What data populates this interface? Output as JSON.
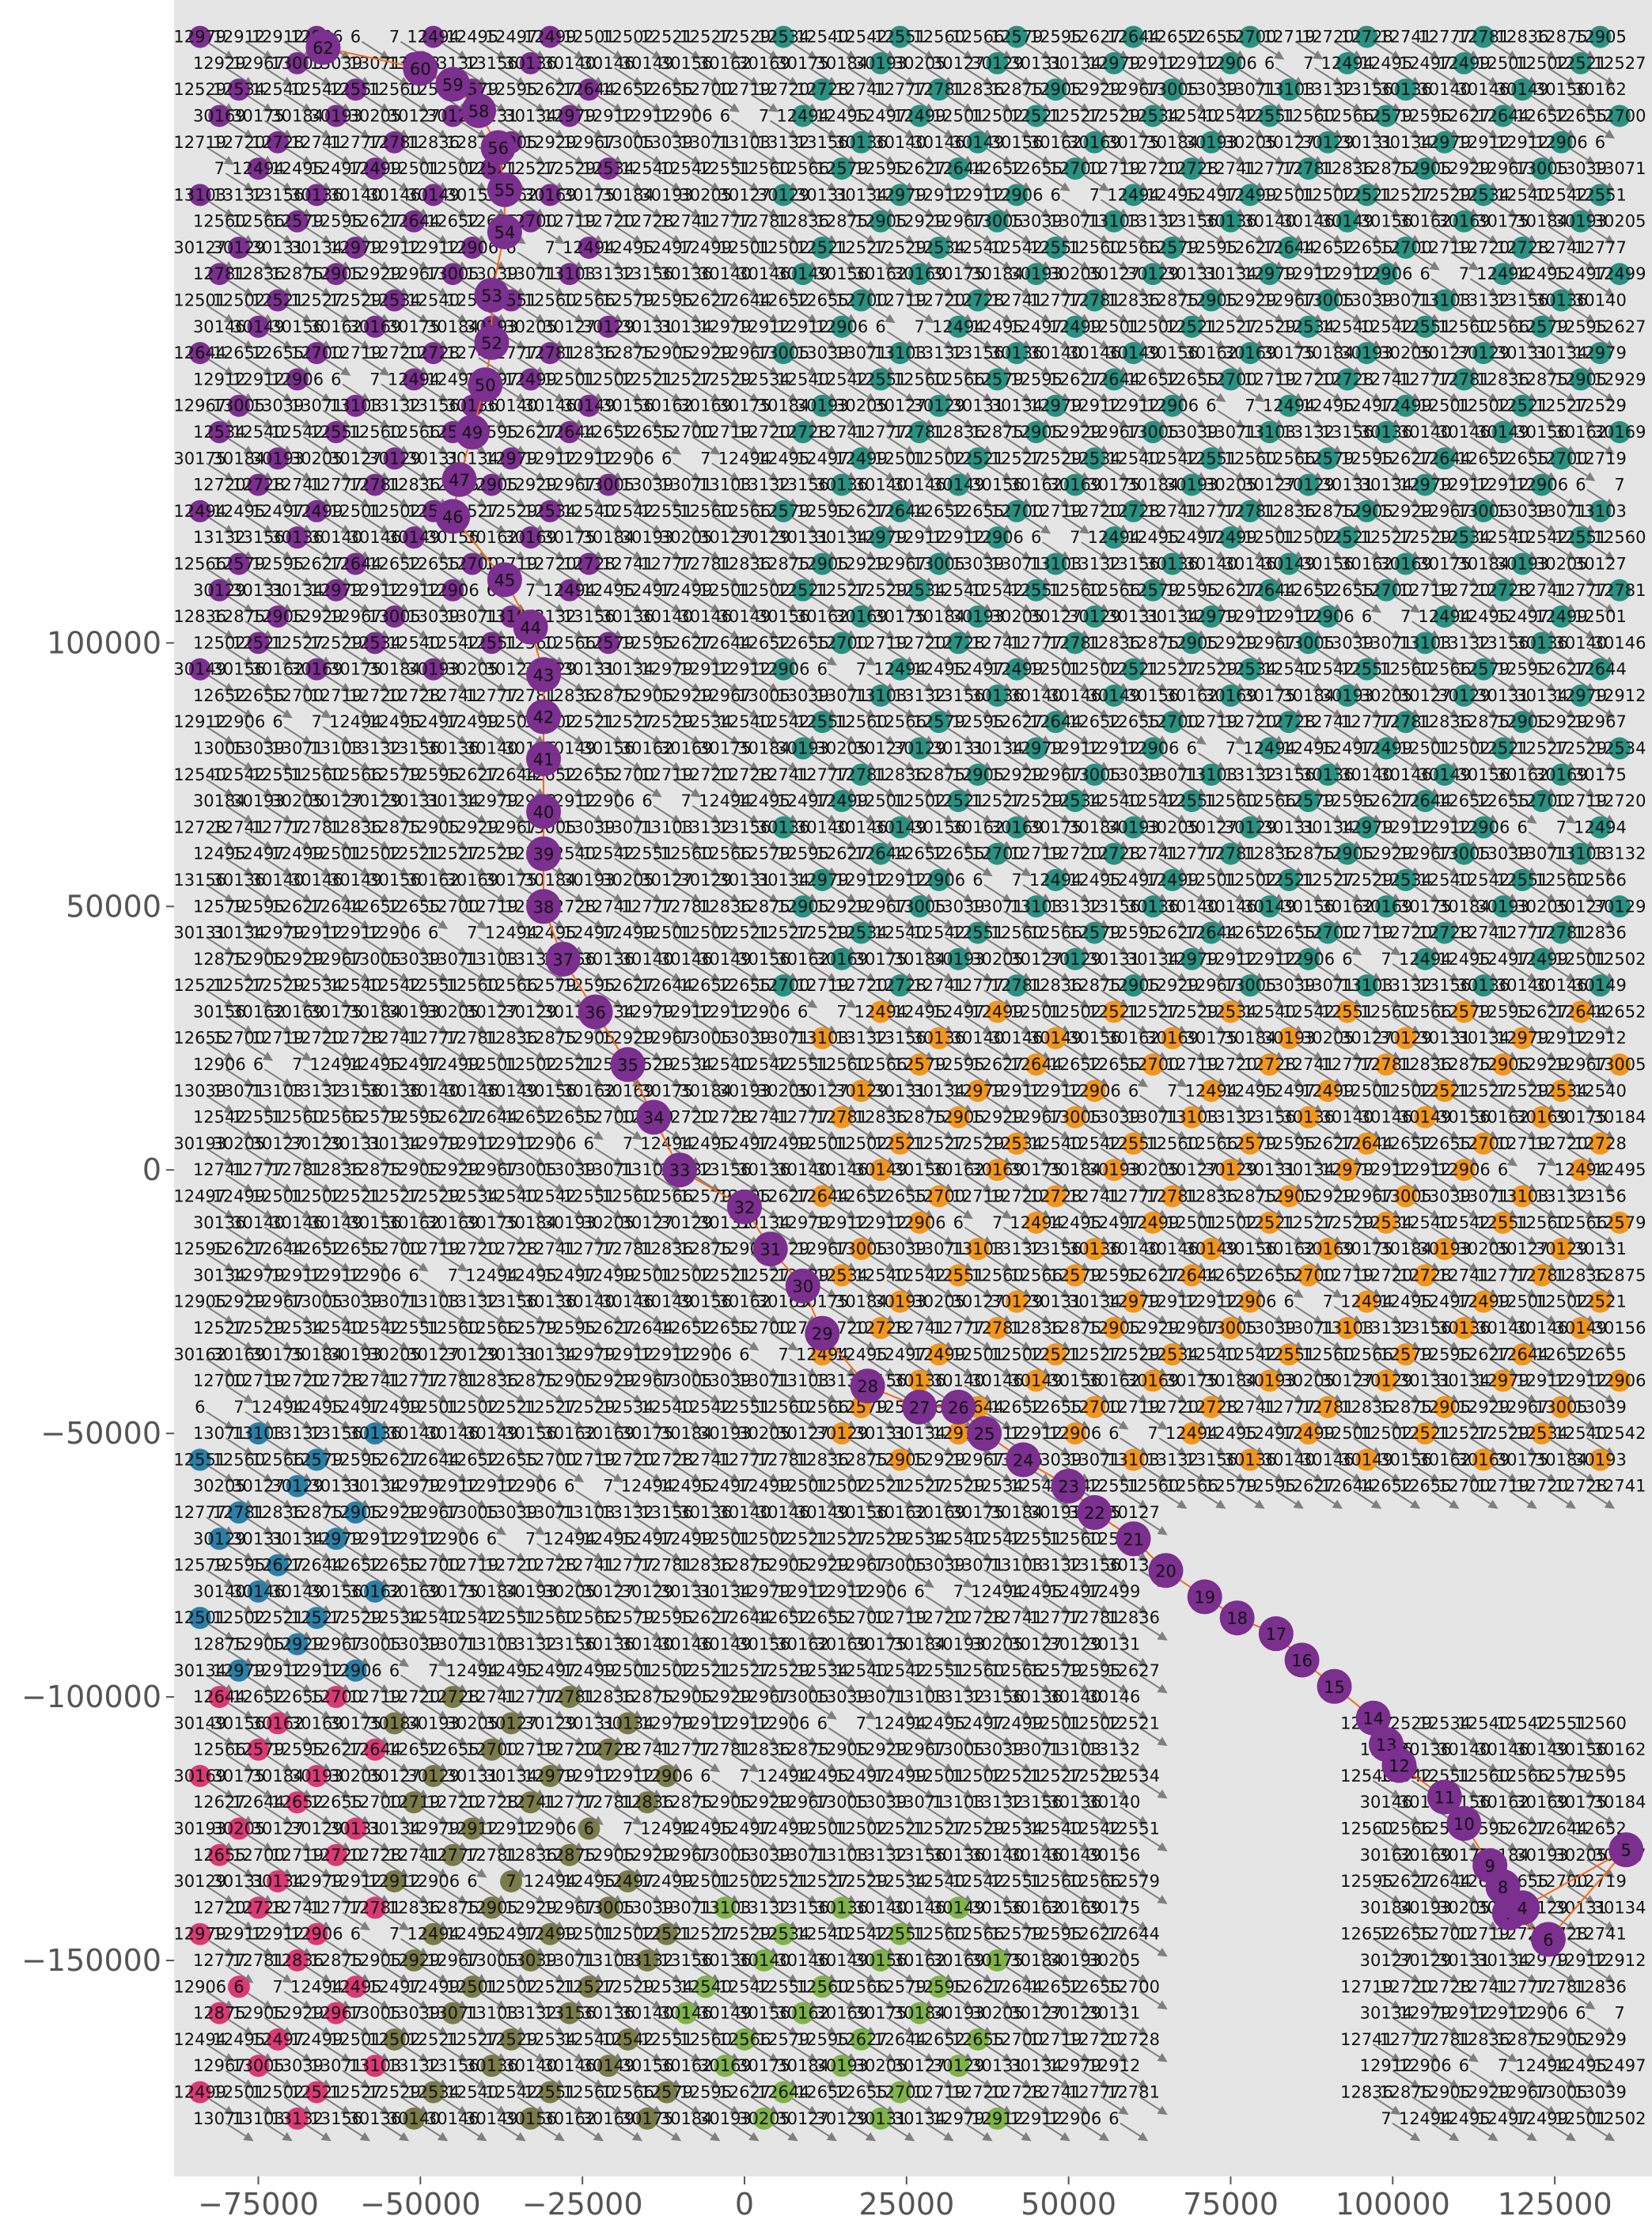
{
  "chart_data": {
    "type": "scatter",
    "subtype": "network-graph",
    "title": "",
    "xlabel": "",
    "ylabel": "",
    "xlim": [
      -88000,
      140000
    ],
    "ylim": [
      -191000,
      222000
    ],
    "grid": false,
    "legend": "none",
    "background": "#e5e5e5",
    "x_ticks": [
      {
        "value": -75000,
        "label": "−75000"
      },
      {
        "value": -50000,
        "label": "−50000"
      },
      {
        "value": -25000,
        "label": "−25000"
      },
      {
        "value": 0,
        "label": "0"
      },
      {
        "value": 25000,
        "label": "25000"
      },
      {
        "value": 50000,
        "label": "50000"
      },
      {
        "value": 75000,
        "label": "75000"
      },
      {
        "value": 100000,
        "label": "100000"
      },
      {
        "value": 125000,
        "label": "125000"
      }
    ],
    "y_ticks": [
      {
        "value": 100000,
        "label": "100000"
      },
      {
        "value": 50000,
        "label": "50000"
      },
      {
        "value": 0,
        "label": "0"
      },
      {
        "value": -50000,
        "label": "−50000"
      },
      {
        "value": -100000,
        "label": "−100000"
      },
      {
        "value": -150000,
        "label": "−150000"
      }
    ],
    "grid_nodes": {
      "x_start": -84000,
      "x_step": 6000,
      "columns": 37,
      "y_start": 215000,
      "y_step": -5000,
      "rows": 80
    },
    "region_colors": {
      "purple": "#7b2f8e",
      "teal": "#2a9081",
      "orange": "#f0961e",
      "blue": "#2b7fa6",
      "olive": "#7a7a4a",
      "pink": "#d93a74",
      "green": "#7fb24a",
      "gray_lattice": "#c8c8c8"
    },
    "path_color": "#f06a1e",
    "node_label_samples": [
      "12979",
      "12912",
      "12912",
      "12906",
      "6",
      "7",
      "12494",
      "12495",
      "12497",
      "12499",
      "12501",
      "12502",
      "12521",
      "12527",
      "12529",
      "12534",
      "12540",
      "12542",
      "12551",
      "12560",
      "12566",
      "12579",
      "12595",
      "12627",
      "12644",
      "12652",
      "12655",
      "12700",
      "12719",
      "12720",
      "12728",
      "12741",
      "12777",
      "12781",
      "12836",
      "12875",
      "12905",
      "12929",
      "12967",
      "13005",
      "13039",
      "13071",
      "13103",
      "13132",
      "13156",
      "30136",
      "30140",
      "30146",
      "30149",
      "30156",
      "30162",
      "30169",
      "30175",
      "30184",
      "30193",
      "30205",
      "30127",
      "30129",
      "30131",
      "30134"
    ],
    "path_nodes": [
      {
        "x": -65000,
        "y": 213000,
        "label": "62"
      },
      {
        "x": -50000,
        "y": 209000,
        "label": "60"
      },
      {
        "x": -45000,
        "y": 206000,
        "label": "59"
      },
      {
        "x": -41000,
        "y": 201000,
        "label": "58"
      },
      {
        "x": -38000,
        "y": 194000,
        "label": "56"
      },
      {
        "x": -37000,
        "y": 186000,
        "label": "55"
      },
      {
        "x": -37000,
        "y": 178000,
        "label": "54"
      },
      {
        "x": -39000,
        "y": 166000,
        "label": "53"
      },
      {
        "x": -39000,
        "y": 157000,
        "label": "52"
      },
      {
        "x": -40000,
        "y": 149000,
        "label": "50"
      },
      {
        "x": -42000,
        "y": 140000,
        "label": "49"
      },
      {
        "x": -44000,
        "y": 131000,
        "label": "47"
      },
      {
        "x": -45000,
        "y": 124000,
        "label": "46"
      },
      {
        "x": -37000,
        "y": 112000,
        "label": "45"
      },
      {
        "x": -33000,
        "y": 103000,
        "label": "44"
      },
      {
        "x": -31000,
        "y": 94000,
        "label": "43"
      },
      {
        "x": -31000,
        "y": 86000,
        "label": "42"
      },
      {
        "x": -31000,
        "y": 78000,
        "label": "41"
      },
      {
        "x": -31000,
        "y": 68000,
        "label": "40"
      },
      {
        "x": -31000,
        "y": 60000,
        "label": "39"
      },
      {
        "x": -31000,
        "y": 50000,
        "label": "38"
      },
      {
        "x": -28000,
        "y": 40000,
        "label": "37"
      },
      {
        "x": -23000,
        "y": 30000,
        "label": "36"
      },
      {
        "x": -18000,
        "y": 20000,
        "label": "35"
      },
      {
        "x": -14000,
        "y": 10000,
        "label": "34"
      },
      {
        "x": -10000,
        "y": 0,
        "label": "33"
      },
      {
        "x": 0,
        "y": -7000,
        "label": "32"
      },
      {
        "x": 4000,
        "y": -15000,
        "label": "31"
      },
      {
        "x": 9000,
        "y": -22000,
        "label": "30"
      },
      {
        "x": 12000,
        "y": -31000,
        "label": "29"
      },
      {
        "x": 19000,
        "y": -41000,
        "label": "28"
      },
      {
        "x": 27000,
        "y": -45000,
        "label": "27"
      },
      {
        "x": 33000,
        "y": -45000,
        "label": "26"
      },
      {
        "x": 37000,
        "y": -50000,
        "label": "25"
      },
      {
        "x": 43000,
        "y": -55000,
        "label": "24"
      },
      {
        "x": 50000,
        "y": -60000,
        "label": "23"
      },
      {
        "x": 54000,
        "y": -65000,
        "label": "22"
      },
      {
        "x": 60000,
        "y": -70000,
        "label": "21"
      },
      {
        "x": 65000,
        "y": -76000,
        "label": "20"
      },
      {
        "x": 71000,
        "y": -81000,
        "label": "19"
      },
      {
        "x": 76000,
        "y": -85000,
        "label": "18"
      },
      {
        "x": 82000,
        "y": -88000,
        "label": "17"
      },
      {
        "x": 86000,
        "y": -93000,
        "label": "16"
      },
      {
        "x": 91000,
        "y": -98000,
        "label": "15"
      },
      {
        "x": 97000,
        "y": -104000,
        "label": "14"
      },
      {
        "x": 99000,
        "y": -109000,
        "label": "13"
      },
      {
        "x": 101000,
        "y": -113000,
        "label": "12"
      },
      {
        "x": 108000,
        "y": -119000,
        "label": "11"
      },
      {
        "x": 111000,
        "y": -124000,
        "label": "10"
      },
      {
        "x": 115000,
        "y": -132000,
        "label": "9"
      },
      {
        "x": 117000,
        "y": -136000,
        "label": "8"
      },
      {
        "x": 118000,
        "y": -141000,
        "label": "7"
      },
      {
        "x": 124000,
        "y": -146000,
        "label": "6"
      },
      {
        "x": 136000,
        "y": -129000,
        "label": "5"
      },
      {
        "x": 120000,
        "y": -140000,
        "label": "4"
      }
    ]
  }
}
